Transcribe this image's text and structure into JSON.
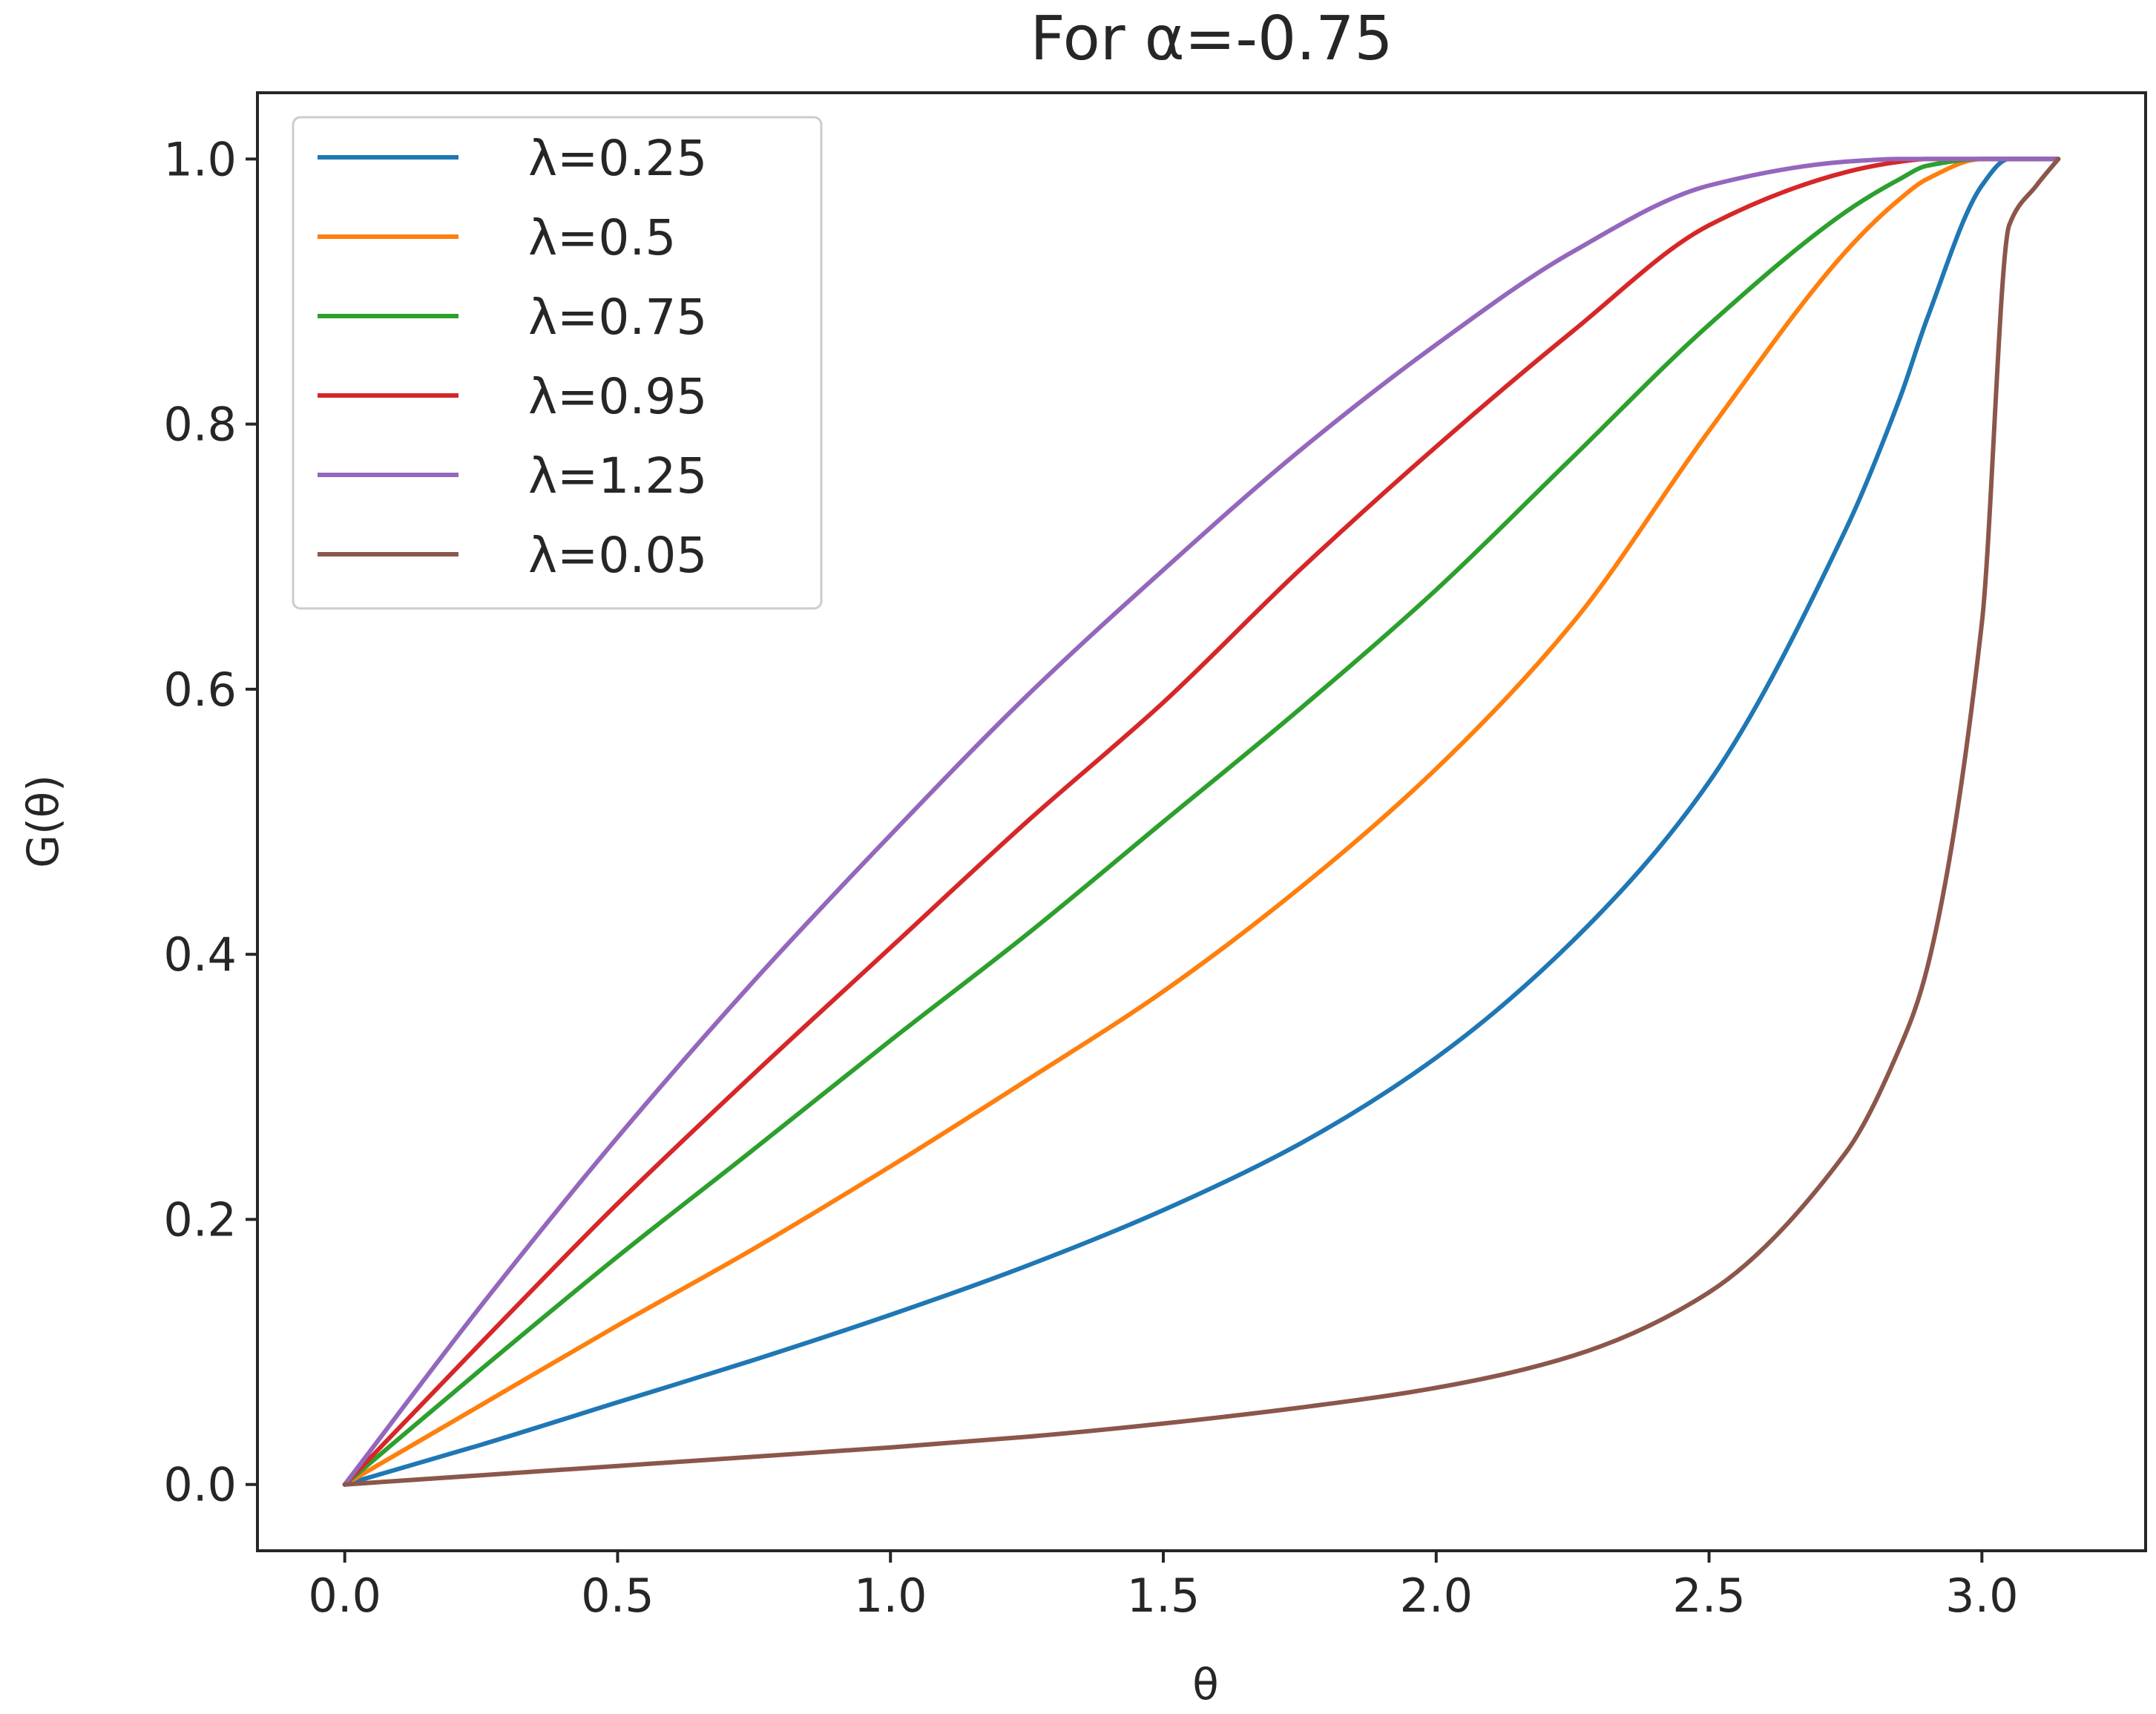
{
  "chart_data": {
    "type": "line",
    "title": "For α=-0.75",
    "xlabel": "θ",
    "ylabel": "G(θ)",
    "xlim": [
      -0.16,
      3.3
    ],
    "ylim": [
      -0.05,
      1.05
    ],
    "xticks": [
      0.0,
      0.5,
      1.0,
      1.5,
      2.0,
      2.5,
      3.0
    ],
    "xtick_labels": [
      "0.0",
      "0.5",
      "1.0",
      "1.5",
      "2.0",
      "2.5",
      "3.0"
    ],
    "yticks": [
      0.0,
      0.2,
      0.4,
      0.6,
      0.8,
      1.0
    ],
    "ytick_labels": [
      "0.0",
      "0.2",
      "0.4",
      "0.6",
      "0.8",
      "1.0"
    ],
    "grid": false,
    "legend_position": "upper-left",
    "x": [
      0.0,
      0.25,
      0.5,
      0.75,
      1.0,
      1.25,
      1.5,
      1.75,
      2.0,
      2.25,
      2.5,
      2.75,
      2.85,
      2.9,
      3.0,
      3.05,
      3.1,
      3.14
    ],
    "series": [
      {
        "name": "λ=0.25",
        "color": "#1f77b4",
        "values": [
          0.0,
          0.03,
          0.062,
          0.094,
          0.128,
          0.165,
          0.207,
          0.257,
          0.322,
          0.41,
          0.53,
          0.72,
          0.82,
          0.88,
          0.98,
          1.0,
          1.0,
          1.0
        ]
      },
      {
        "name": "λ=0.5",
        "color": "#ff7f0e",
        "values": [
          0.0,
          0.06,
          0.12,
          0.178,
          0.24,
          0.305,
          0.372,
          0.45,
          0.54,
          0.65,
          0.795,
          0.93,
          0.97,
          0.985,
          1.0,
          1.0,
          1.0,
          1.0
        ]
      },
      {
        "name": "λ=0.75",
        "color": "#2ca02c",
        "values": [
          0.0,
          0.087,
          0.172,
          0.253,
          0.335,
          0.415,
          0.5,
          0.585,
          0.675,
          0.775,
          0.875,
          0.96,
          0.985,
          0.995,
          1.0,
          1.0,
          1.0,
          1.0
        ]
      },
      {
        "name": "λ=0.95",
        "color": "#d62728",
        "values": [
          0.0,
          0.107,
          0.212,
          0.31,
          0.405,
          0.5,
          0.59,
          0.69,
          0.783,
          0.87,
          0.95,
          0.99,
          0.998,
          1.0,
          1.0,
          1.0,
          1.0,
          1.0
        ]
      },
      {
        "name": "λ=1.25",
        "color": "#9467bd",
        "values": [
          0.0,
          0.135,
          0.262,
          0.38,
          0.49,
          0.595,
          0.69,
          0.78,
          0.86,
          0.93,
          0.98,
          0.998,
          1.0,
          1.0,
          1.0,
          1.0,
          1.0,
          1.0
        ]
      },
      {
        "name": "λ=0.05",
        "color": "#8c564b",
        "values": [
          0.0,
          0.007,
          0.014,
          0.021,
          0.028,
          0.036,
          0.046,
          0.058,
          0.073,
          0.097,
          0.145,
          0.25,
          0.33,
          0.39,
          0.65,
          0.95,
          0.98,
          1.0
        ]
      }
    ]
  }
}
